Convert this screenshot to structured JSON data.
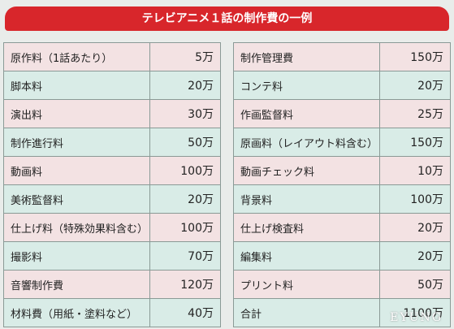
{
  "header": {
    "title": "テレビアニメ１話の制作費の一例"
  },
  "tables": [
    {
      "rows": [
        [
          "原作料（1話あたり）",
          "5万"
        ],
        [
          "脚本料",
          "20万"
        ],
        [
          "演出料",
          "30万"
        ],
        [
          "制作進行料",
          "50万"
        ],
        [
          "動画料",
          "100万"
        ],
        [
          "美術監督料",
          "20万"
        ],
        [
          "仕上げ料（特殊効果料含む）",
          "100万"
        ],
        [
          "撮影料",
          "70万"
        ],
        [
          "音響制作費",
          "120万"
        ],
        [
          "材料費（用紙・塗料など）",
          "40万"
        ]
      ]
    },
    {
      "rows": [
        [
          "制作管理費",
          "150万"
        ],
        [
          "コンテ料",
          "20万"
        ],
        [
          "作画監督料",
          "25万"
        ],
        [
          "原画料（レイアウト料含む）",
          "150万"
        ],
        [
          "動画チェック料",
          "10万"
        ],
        [
          "背景料",
          "100万"
        ],
        [
          "仕上げ検査料",
          "20万"
        ],
        [
          "編集料",
          "20万"
        ],
        [
          "プリント料",
          "50万"
        ],
        [
          "合計",
          "1100万"
        ]
      ]
    }
  ],
  "watermark": "EYUNG"
}
